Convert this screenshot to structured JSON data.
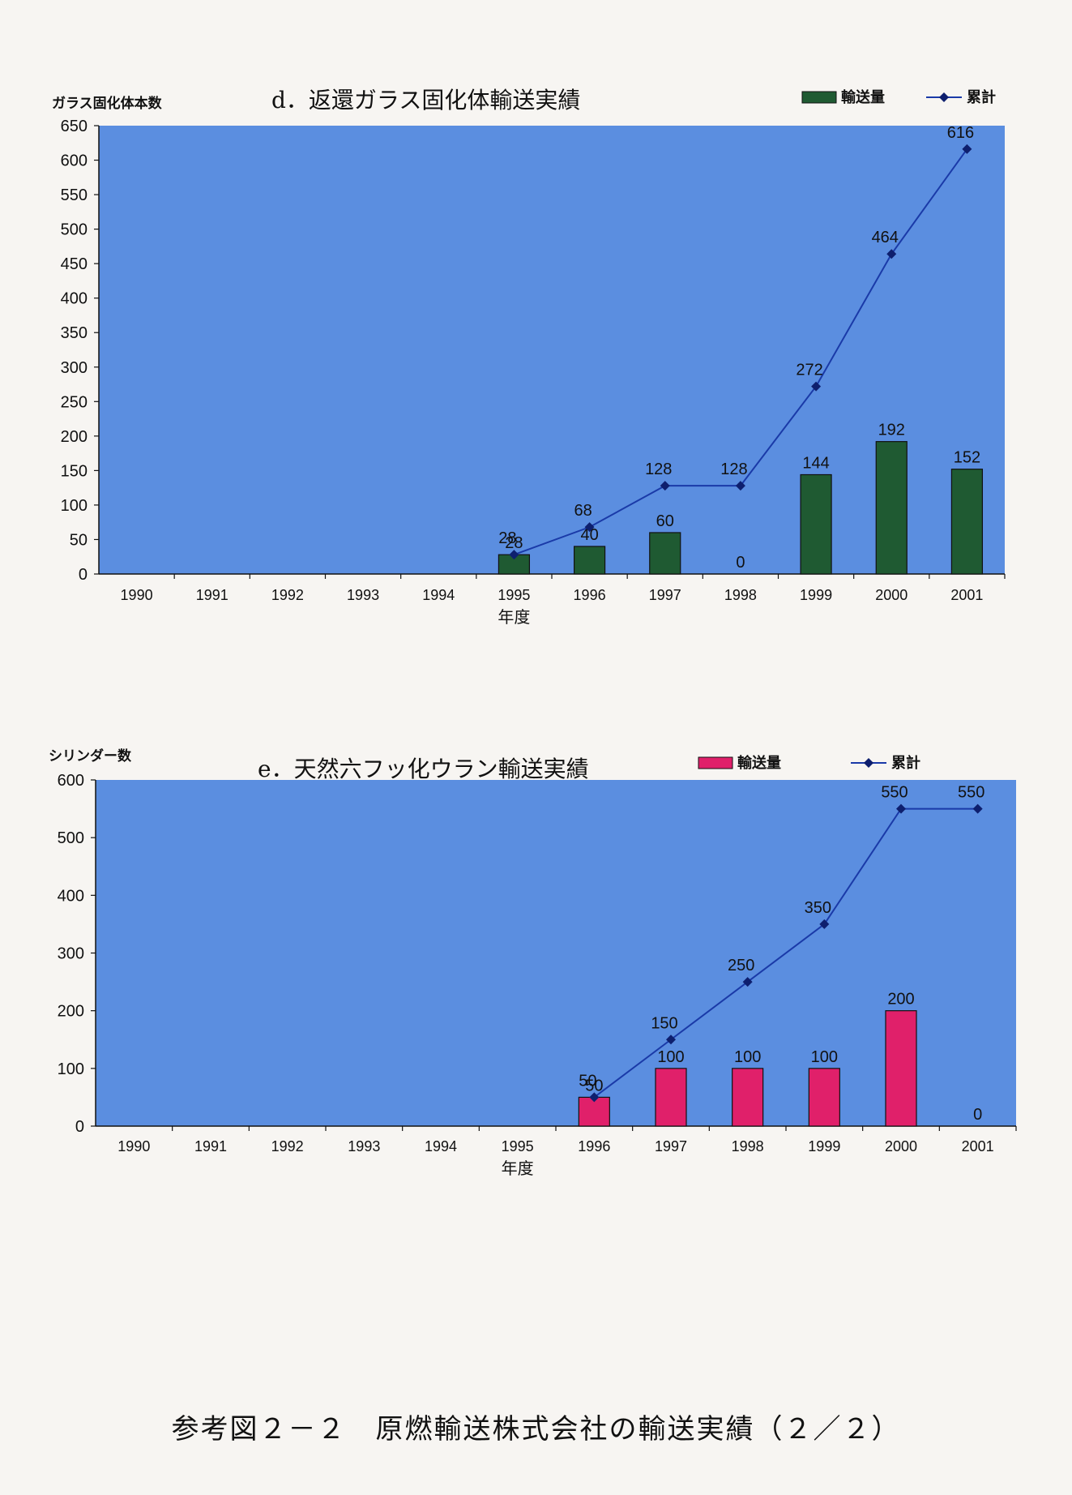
{
  "chart_data": [
    {
      "id": "d",
      "type": "bar+line",
      "title": "d．返還ガラス固化体輸送実績",
      "ylabel": "ガラス固化体本数",
      "xlabel": "年度",
      "ylim": [
        0,
        650
      ],
      "yticks": [
        0,
        50,
        100,
        150,
        200,
        250,
        300,
        350,
        400,
        450,
        500,
        550,
        600,
        650
      ],
      "categories": [
        "1990",
        "1991",
        "1992",
        "1993",
        "1994",
        "1995",
        "1996",
        "1997",
        "1998",
        "1999",
        "2000",
        "2001"
      ],
      "bar_start_index": 5,
      "series": [
        {
          "name": "輸送量",
          "kind": "bar",
          "color": "#1f5a32",
          "values": [
            null,
            null,
            null,
            null,
            null,
            28,
            40,
            60,
            0,
            144,
            192,
            152
          ]
        },
        {
          "name": "累計",
          "kind": "line",
          "color": "#1a3aa8",
          "values": [
            null,
            null,
            null,
            null,
            null,
            28,
            68,
            128,
            128,
            272,
            464,
            616
          ]
        }
      ],
      "plot_bg": "#5b8ee0",
      "legend_position": "top-right",
      "grid": false
    },
    {
      "id": "e",
      "type": "bar+line",
      "title": "e．天然六フッ化ウラン輸送実績",
      "ylabel": "シリンダー数",
      "xlabel": "年度",
      "ylim": [
        0,
        600
      ],
      "yticks": [
        0,
        100,
        200,
        300,
        400,
        500,
        600
      ],
      "categories": [
        "1990",
        "1991",
        "1992",
        "1993",
        "1994",
        "1995",
        "1996",
        "1997",
        "1998",
        "1999",
        "2000",
        "2001"
      ],
      "bar_start_index": 6,
      "series": [
        {
          "name": "輸送量",
          "kind": "bar",
          "color": "#e0206a",
          "values": [
            null,
            null,
            null,
            null,
            null,
            null,
            50,
            100,
            100,
            100,
            200,
            0
          ]
        },
        {
          "name": "累計",
          "kind": "line",
          "color": "#1a3aa8",
          "values": [
            null,
            null,
            null,
            null,
            null,
            null,
            50,
            150,
            250,
            350,
            550,
            550
          ]
        }
      ],
      "plot_bg": "#5b8ee0",
      "legend_position": "top-right",
      "grid": false
    }
  ],
  "caption": "参考図２－２　原燃輸送株式会社の輸送実績（２／２）"
}
